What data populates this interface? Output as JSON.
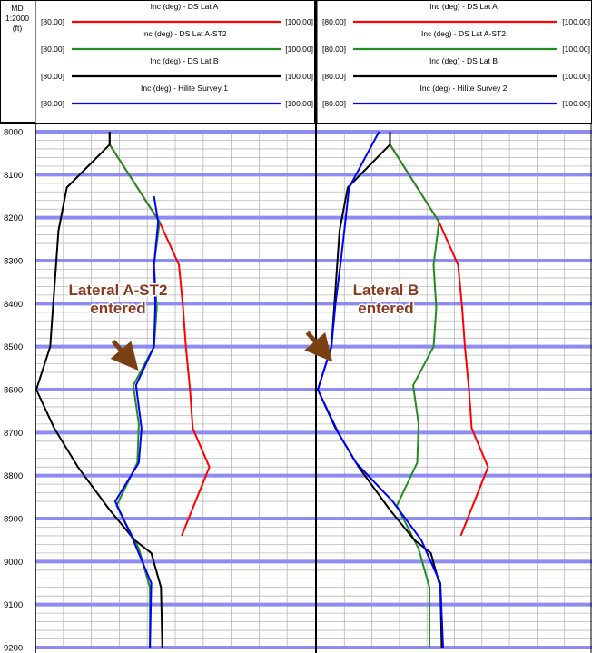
{
  "md_header": {
    "title": "MD",
    "scale": "1:2000",
    "unit": "(ft)"
  },
  "chart_data": {
    "type": "line",
    "depth_axis": {
      "label": "MD",
      "unit": "ft",
      "range": [
        8000,
        9200
      ],
      "ticks": [
        8000,
        8100,
        8200,
        8300,
        8400,
        8500,
        8600,
        8700,
        8800,
        8900,
        9000,
        9100,
        9200
      ]
    },
    "x_range": [
      80,
      100
    ],
    "x_range_labels": {
      "min": "[80.00]",
      "max": "[100.00]"
    },
    "panels": [
      {
        "series": [
          {
            "name": "Inc (deg) - DS Lat A",
            "color": "#ff0000",
            "points": [
              [
                8000,
                85.3
              ],
              [
                8030,
                85.3
              ],
              [
                8130,
                87.3
              ],
              [
                8210,
                88.9
              ],
              [
                8310,
                90.3
              ],
              [
                8410,
                90.6
              ],
              [
                8500,
                90.8
              ],
              [
                8600,
                91.1
              ],
              [
                8690,
                91.3
              ],
              [
                8780,
                92.5
              ],
              [
                8940,
                90.5
              ]
            ]
          },
          {
            "name": "Inc (deg) - DS Lat A-ST2",
            "color": "#228b22",
            "points": [
              [
                8000,
                85.3
              ],
              [
                8030,
                85.3
              ],
              [
                8130,
                87.3
              ],
              [
                8210,
                88.9
              ],
              [
                8310,
                88.5
              ],
              [
                8410,
                88.7
              ],
              [
                8500,
                88.5
              ],
              [
                8590,
                87.0
              ],
              [
                8680,
                87.4
              ],
              [
                8770,
                87.3
              ],
              [
                8870,
                85.8
              ],
              [
                8970,
                87.4
              ],
              [
                9060,
                88.2
              ],
              [
                9200,
                88.2
              ]
            ]
          },
          {
            "name": "Inc (deg) - DS Lat B",
            "color": "#000000",
            "points": [
              [
                8000,
                85.3
              ],
              [
                8030,
                85.3
              ],
              [
                8130,
                82.2
              ],
              [
                8230,
                81.6
              ],
              [
                8320,
                81.4
              ],
              [
                8410,
                81.2
              ],
              [
                8500,
                81.0
              ],
              [
                8600,
                80.0
              ],
              [
                8690,
                81.3
              ],
              [
                8780,
                83.0
              ],
              [
                8880,
                85.3
              ],
              [
                8950,
                87.1
              ],
              [
                8980,
                88.3
              ],
              [
                9060,
                89.0
              ],
              [
                9200,
                89.1
              ]
            ]
          },
          {
            "name": "Inc (deg) - Hilite Survey 1",
            "color": "#0000ff",
            "points": [
              [
                8150,
                88.5
              ],
              [
                8210,
                88.8
              ],
              [
                8310,
                88.5
              ],
              [
                8400,
                88.6
              ],
              [
                8500,
                88.5
              ],
              [
                8590,
                87.2
              ],
              [
                8690,
                87.6
              ],
              [
                8770,
                87.4
              ],
              [
                8860,
                85.7
              ],
              [
                8950,
                87.0
              ],
              [
                9050,
                88.3
              ],
              [
                9200,
                88.2
              ]
            ]
          }
        ]
      },
      {
        "series": [
          {
            "name": "Inc (deg) - DS Lat A",
            "color": "#ff0000",
            "points": [
              [
                8000,
                85.3
              ],
              [
                8030,
                85.3
              ],
              [
                8130,
                87.3
              ],
              [
                8210,
                88.9
              ],
              [
                8310,
                90.3
              ],
              [
                8410,
                90.6
              ],
              [
                8500,
                90.8
              ],
              [
                8600,
                91.1
              ],
              [
                8690,
                91.3
              ],
              [
                8780,
                92.5
              ],
              [
                8940,
                90.5
              ]
            ]
          },
          {
            "name": "Inc (deg) - DS Lat A-ST2",
            "color": "#228b22",
            "points": [
              [
                8000,
                85.3
              ],
              [
                8030,
                85.3
              ],
              [
                8130,
                87.3
              ],
              [
                8210,
                88.9
              ],
              [
                8310,
                88.5
              ],
              [
                8410,
                88.7
              ],
              [
                8500,
                88.5
              ],
              [
                8590,
                87.0
              ],
              [
                8680,
                87.4
              ],
              [
                8770,
                87.3
              ],
              [
                8870,
                85.8
              ],
              [
                8970,
                87.4
              ],
              [
                9060,
                88.2
              ],
              [
                9200,
                88.2
              ]
            ]
          },
          {
            "name": "Inc (deg) - DS Lat B",
            "color": "#000000",
            "points": [
              [
                8000,
                85.3
              ],
              [
                8030,
                85.3
              ],
              [
                8130,
                82.2
              ],
              [
                8230,
                81.6
              ],
              [
                8320,
                81.4
              ],
              [
                8410,
                81.2
              ],
              [
                8500,
                81.0
              ],
              [
                8600,
                80.0
              ],
              [
                8690,
                81.3
              ],
              [
                8780,
                83.0
              ],
              [
                8880,
                85.3
              ],
              [
                8950,
                87.1
              ],
              [
                8980,
                88.3
              ],
              [
                9060,
                89.0
              ],
              [
                9200,
                89.1
              ]
            ]
          },
          {
            "name": "Inc (deg) - Hilite Survey 2",
            "color": "#0000ff",
            "points": [
              [
                8000,
                84.5
              ],
              [
                8130,
                82.3
              ],
              [
                8300,
                81.7
              ],
              [
                8400,
                81.3
              ],
              [
                8500,
                81.0
              ],
              [
                8600,
                80.0
              ],
              [
                8700,
                81.5
              ],
              [
                8770,
                82.8
              ],
              [
                8860,
                85.5
              ],
              [
                8950,
                87.6
              ],
              [
                9050,
                89.0
              ],
              [
                9200,
                89.2
              ]
            ]
          }
        ]
      }
    ],
    "annotations": [
      {
        "panel": 0,
        "lines": [
          "Lateral A-ST2",
          "entered"
        ],
        "arrow_target": [
          8540,
          87.0
        ]
      },
      {
        "panel": 1,
        "lines": [
          "Lateral B",
          "entered"
        ],
        "arrow_target": [
          8520,
          80.7
        ]
      }
    ],
    "grid": true
  }
}
